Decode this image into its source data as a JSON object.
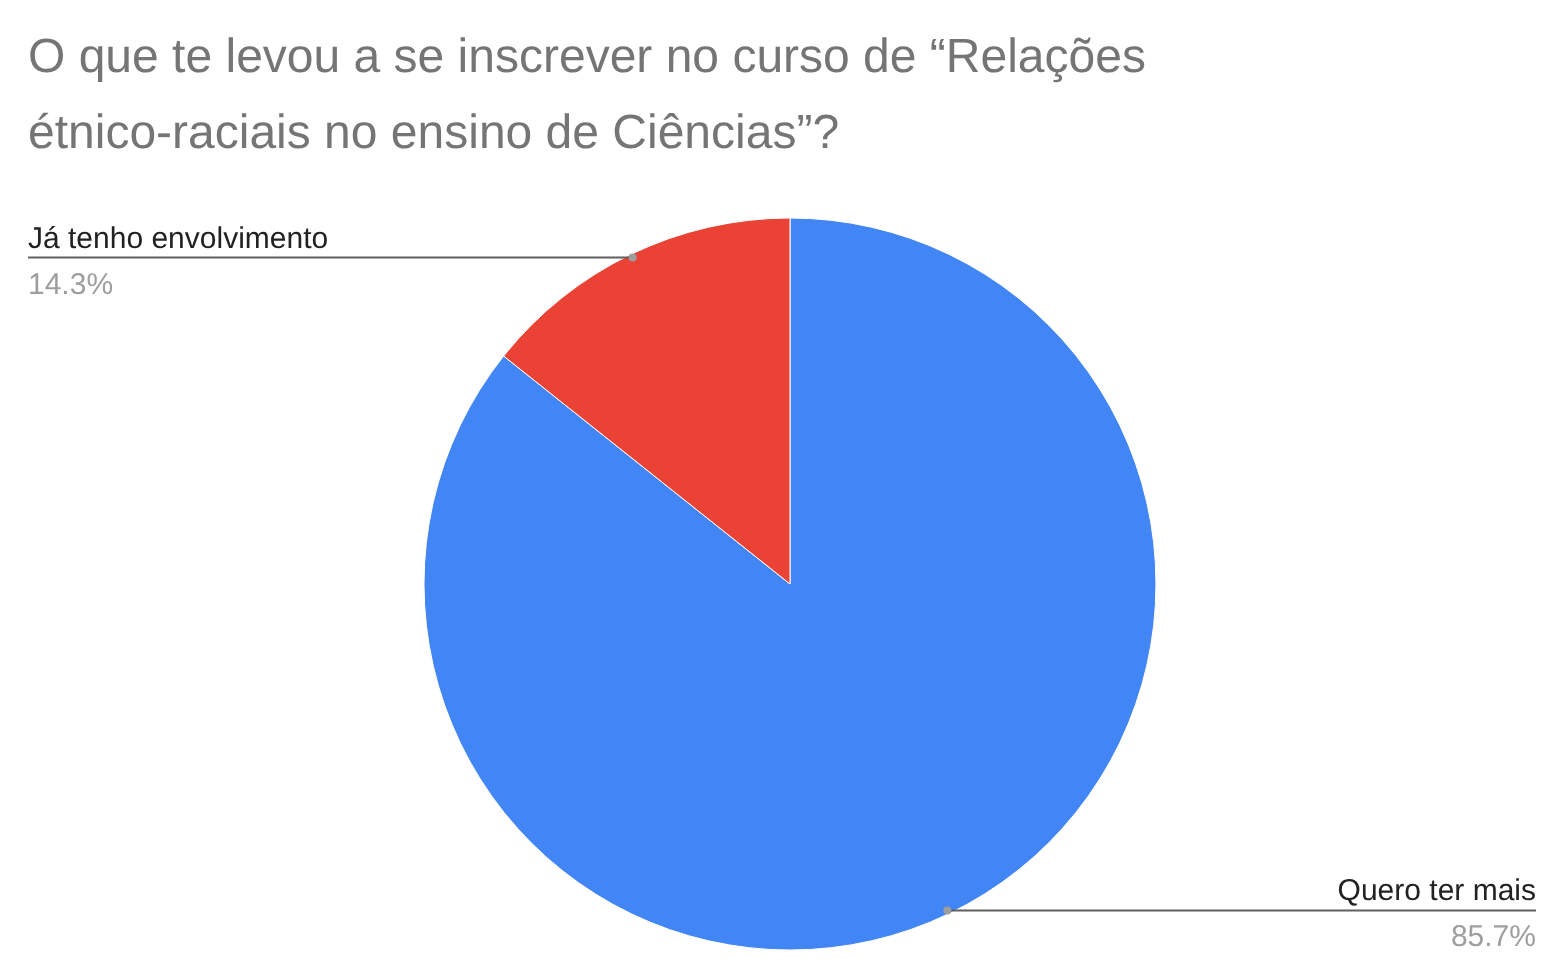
{
  "chart_data": {
    "type": "pie",
    "title": "O que te levou a se inscrever no curso de “Relações étnico-raciais no ensino de Ciências”?",
    "categories": [
      "Quero ter mais",
      "Já tenho envolvimento"
    ],
    "values": [
      85.7,
      14.3
    ],
    "colors": [
      "#4285f4",
      "#ea4335"
    ],
    "value_labels": [
      "85.7%",
      "14.3%"
    ]
  }
}
